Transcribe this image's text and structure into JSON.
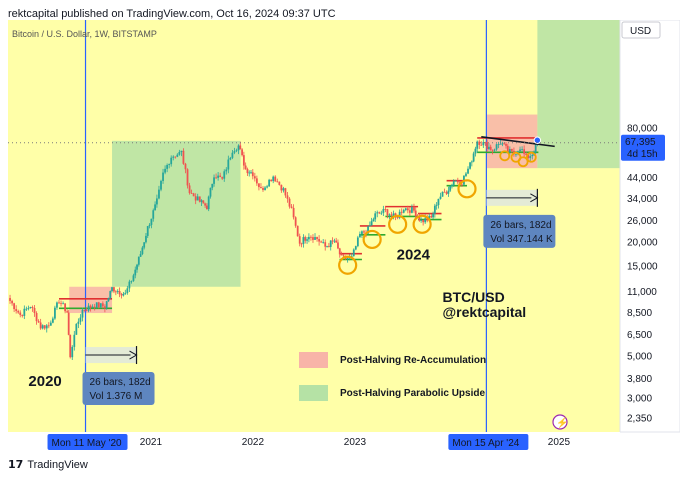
{
  "header": {
    "published": "rektcapital published on TradingView.com, Oct 16, 2024 09:37 UTC"
  },
  "footer": {
    "logo": "17",
    "brand": "TradingView"
  },
  "chart_data": {
    "type": "candlestick",
    "symbol": "Bitcoin / U.S. Dollar, 1W, BITSTAMP",
    "currency": "USD",
    "y_scale": "log",
    "y_ticks": [
      {
        "v": 80000,
        "label": "80,000"
      },
      {
        "v": 44000,
        "label": "44,000"
      },
      {
        "v": 34000,
        "label": "34,000"
      },
      {
        "v": 26000,
        "label": "26,000"
      },
      {
        "v": 20000,
        "label": "20,000"
      },
      {
        "v": 15000,
        "label": "15,000"
      },
      {
        "v": 11000,
        "label": "11,000"
      },
      {
        "v": 8500,
        "label": "8,500"
      },
      {
        "v": 6500,
        "label": "6,500"
      },
      {
        "v": 5000,
        "label": "5,000"
      },
      {
        "v": 3800,
        "label": "3,800"
      },
      {
        "v": 3000,
        "label": "3,000"
      },
      {
        "v": 2350,
        "label": "2,350"
      }
    ],
    "x_ticks": [
      {
        "t": 2021.0,
        "label": "2021"
      },
      {
        "t": 2022.0,
        "label": "2022"
      },
      {
        "t": 2023.0,
        "label": "2023"
      },
      {
        "t": 2025.0,
        "label": "2025"
      }
    ],
    "halving_lines": [
      {
        "t": 2020.36,
        "label": "Mon 11 May '20"
      },
      {
        "t": 2024.29,
        "label": "Mon 15 Apr '24"
      }
    ],
    "last_price": {
      "value": 67395,
      "label": "67,395",
      "countdown": "4d 15h"
    },
    "price_path": [
      [
        2019.6,
        10200
      ],
      [
        2019.72,
        8300
      ],
      [
        2019.82,
        9300
      ],
      [
        2019.92,
        7200
      ],
      [
        2020.0,
        7300
      ],
      [
        2020.1,
        9900
      ],
      [
        2020.18,
        8600
      ],
      [
        2020.21,
        4900
      ],
      [
        2020.25,
        6700
      ],
      [
        2020.33,
        8800
      ],
      [
        2020.45,
        9400
      ],
      [
        2020.55,
        9200
      ],
      [
        2020.62,
        11500
      ],
      [
        2020.75,
        10700
      ],
      [
        2020.83,
        13500
      ],
      [
        2020.9,
        17500
      ],
      [
        2020.97,
        24000
      ],
      [
        2021.06,
        33000
      ],
      [
        2021.12,
        46000
      ],
      [
        2021.2,
        57000
      ],
      [
        2021.3,
        60000
      ],
      [
        2021.38,
        37000
      ],
      [
        2021.48,
        33000
      ],
      [
        2021.55,
        31000
      ],
      [
        2021.62,
        46000
      ],
      [
        2021.7,
        43000
      ],
      [
        2021.8,
        62000
      ],
      [
        2021.86,
        65000
      ],
      [
        2021.93,
        49000
      ],
      [
        2022.0,
        46500
      ],
      [
        2022.08,
        38000
      ],
      [
        2022.2,
        45000
      ],
      [
        2022.3,
        38000
      ],
      [
        2022.38,
        29500
      ],
      [
        2022.46,
        20000
      ],
      [
        2022.55,
        22000
      ],
      [
        2022.63,
        21000
      ],
      [
        2022.71,
        19000
      ],
      [
        2022.8,
        20500
      ],
      [
        2022.87,
        16500
      ],
      [
        2022.97,
        16600
      ],
      [
        2023.05,
        22000
      ],
      [
        2023.13,
        23500
      ],
      [
        2023.2,
        28000
      ],
      [
        2023.3,
        29500
      ],
      [
        2023.4,
        27000
      ],
      [
        2023.48,
        30500
      ],
      [
        2023.58,
        29500
      ],
      [
        2023.65,
        26000
      ],
      [
        2023.75,
        27000
      ],
      [
        2023.82,
        34500
      ],
      [
        2023.9,
        37500
      ],
      [
        2023.97,
        42500
      ],
      [
        2024.05,
        42000
      ],
      [
        2024.13,
        51500
      ],
      [
        2024.2,
        69000
      ],
      [
        2024.28,
        66000
      ],
      [
        2024.35,
        62000
      ],
      [
        2024.43,
        68000
      ],
      [
        2024.5,
        61000
      ],
      [
        2024.56,
        59000
      ],
      [
        2024.62,
        64000
      ],
      [
        2024.68,
        56000
      ],
      [
        2024.74,
        59000
      ],
      [
        2024.79,
        67395
      ]
    ],
    "zones": [
      {
        "kind": "accumulation",
        "t0": 2020.2,
        "t1": 2020.62,
        "lo": 8500,
        "hi": 11700
      },
      {
        "kind": "parabolic",
        "t0": 2020.62,
        "t1": 2021.88,
        "lo": 11700,
        "hi": 69000
      },
      {
        "kind": "accumulation",
        "t0": 2024.29,
        "t1": 2024.79,
        "lo": 49500,
        "hi": 95000
      },
      {
        "kind": "parabolic",
        "t0": 2024.79,
        "t1": 2025.6,
        "lo": 49500,
        "hi": 300000
      }
    ],
    "level_lines": [
      {
        "t0": 2020.1,
        "t1": 2020.62,
        "v": 10100,
        "color": "red"
      },
      {
        "t0": 2020.1,
        "t1": 2020.62,
        "v": 9000,
        "color": "green"
      },
      {
        "t0": 2022.85,
        "t1": 2023.07,
        "v": 17500,
        "color": "red"
      },
      {
        "t0": 2022.85,
        "t1": 2023.07,
        "v": 16300,
        "color": "green"
      },
      {
        "t0": 2023.05,
        "t1": 2023.3,
        "v": 24500,
        "color": "red"
      },
      {
        "t0": 2023.05,
        "t1": 2023.3,
        "v": 22000,
        "color": "green"
      },
      {
        "t0": 2023.3,
        "t1": 2023.62,
        "v": 31000,
        "color": "red"
      },
      {
        "t0": 2023.3,
        "t1": 2023.62,
        "v": 27500,
        "color": "green"
      },
      {
        "t0": 2023.62,
        "t1": 2023.85,
        "v": 28500,
        "color": "red"
      },
      {
        "t0": 2023.62,
        "t1": 2023.85,
        "v": 26500,
        "color": "green"
      },
      {
        "t0": 2023.9,
        "t1": 2024.1,
        "v": 42500,
        "color": "red"
      },
      {
        "t0": 2023.9,
        "t1": 2024.1,
        "v": 40000,
        "color": "green"
      },
      {
        "t0": 2024.2,
        "t1": 2024.8,
        "v": 71500,
        "color": "red"
      },
      {
        "t0": 2024.2,
        "t1": 2024.8,
        "v": 60000,
        "color": "green"
      }
    ],
    "circles": [
      {
        "t": 2022.93,
        "v": 15200
      },
      {
        "t": 2023.17,
        "v": 20800
      },
      {
        "t": 2023.42,
        "v": 25000
      },
      {
        "t": 2023.66,
        "v": 25000
      },
      {
        "t": 2024.1,
        "v": 38500
      },
      {
        "t": 2024.47,
        "v": 57500
      },
      {
        "t": 2024.58,
        "v": 56500
      },
      {
        "t": 2024.65,
        "v": 53500
      },
      {
        "t": 2024.73,
        "v": 56500
      }
    ],
    "downtrend": {
      "t0": 2024.24,
      "v0": 72500,
      "t1": 2024.96,
      "v1": 64500
    },
    "range_tools": [
      {
        "t0": 2020.36,
        "t1": 2020.86,
        "v": 5100,
        "label1": "26 bars, 182d",
        "label2": "Vol 1.376 M"
      },
      {
        "t0": 2024.29,
        "t1": 2024.79,
        "v": 34500,
        "label1": "26 bars, 182d",
        "label2": "Vol 347.144 K"
      }
    ],
    "annotations": [
      {
        "text": "2020",
        "t": 2019.8,
        "v": 3500,
        "size": 15
      },
      {
        "text": "2024",
        "t": 2023.41,
        "v": 16300,
        "size": 15
      },
      {
        "text": "BTC/USD",
        "t": 2023.86,
        "v": 9700,
        "size": 14
      },
      {
        "text": "@rektcapital",
        "t": 2023.86,
        "v": 8100,
        "size": 14
      }
    ],
    "legend": [
      {
        "kind": "accumulation",
        "label": "Post-Halving Re-Accumulation"
      },
      {
        "kind": "parabolic",
        "label": "Post-Halving Parabolic Upside"
      }
    ],
    "colors": {
      "background": "#ffffa8",
      "up": "#26a69a",
      "down": "#ef5350",
      "accumulation": "#f8b4a8",
      "parabolic": "#b5e2a5",
      "halving": "#2962ff",
      "circle": "#f0a500",
      "last_price": "#2962ff"
    }
  }
}
